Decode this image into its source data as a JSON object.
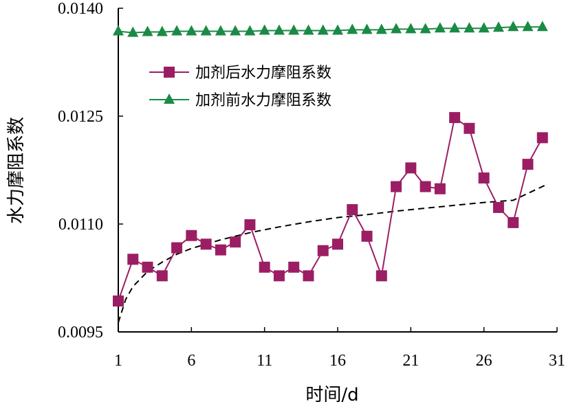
{
  "chart_data": {
    "type": "line",
    "xlabel": "时间/d",
    "ylabel": "水力摩阻系数",
    "xlim": [
      1,
      31
    ],
    "ylim": [
      0.0095,
      0.014
    ],
    "xticks": [
      1,
      6,
      11,
      16,
      21,
      26,
      31
    ],
    "yticks": [
      "0.0095",
      "0.0110",
      "0.0125",
      "0.0140"
    ],
    "grid": false,
    "legend_position": "upper-left",
    "x": [
      1,
      2,
      3,
      4,
      5,
      6,
      7,
      8,
      9,
      10,
      11,
      12,
      13,
      14,
      15,
      16,
      17,
      18,
      19,
      20,
      21,
      22,
      23,
      24,
      25,
      26,
      27,
      28,
      29,
      30
    ],
    "series": [
      {
        "name": "加剂后水力摩阻系数",
        "marker": "square",
        "color": "#9B1E64",
        "values": [
          0.00993,
          0.01051,
          0.0104,
          0.01028,
          0.01067,
          0.01084,
          0.01072,
          0.01064,
          0.01075,
          0.01099,
          0.0104,
          0.01028,
          0.0104,
          0.01028,
          0.01063,
          0.01072,
          0.0112,
          0.01083,
          0.01028,
          0.01152,
          0.01178,
          0.01152,
          0.01149,
          0.01248,
          0.01233,
          0.01164,
          0.01123,
          0.01102,
          0.01183,
          0.0122
        ]
      },
      {
        "name": "加剂前水力摩阻系数",
        "marker": "triangle",
        "color": "#1A8A45",
        "values": [
          0.01368,
          0.01366,
          0.01367,
          0.01367,
          0.01368,
          0.01368,
          0.01368,
          0.01368,
          0.01368,
          0.01368,
          0.01369,
          0.01369,
          0.01369,
          0.01369,
          0.01369,
          0.01369,
          0.0137,
          0.0137,
          0.0137,
          0.01371,
          0.01371,
          0.01371,
          0.01372,
          0.01372,
          0.01372,
          0.01372,
          0.01373,
          0.01374,
          0.01374,
          0.01374
        ]
      },
      {
        "type": "trend",
        "style": "dashed",
        "color": "#000000",
        "x": [
          1,
          1.5,
          2,
          3,
          4,
          5,
          6,
          8,
          10,
          12,
          14,
          16,
          18,
          20,
          22,
          24,
          26,
          28,
          30.3
        ],
        "values": [
          0.00963,
          0.00995,
          0.01013,
          0.01034,
          0.01047,
          0.01058,
          0.01066,
          0.01078,
          0.01088,
          0.01096,
          0.01103,
          0.01109,
          0.01113,
          0.01118,
          0.01122,
          0.01126,
          0.0113,
          0.01133,
          0.01155
        ]
      }
    ]
  }
}
